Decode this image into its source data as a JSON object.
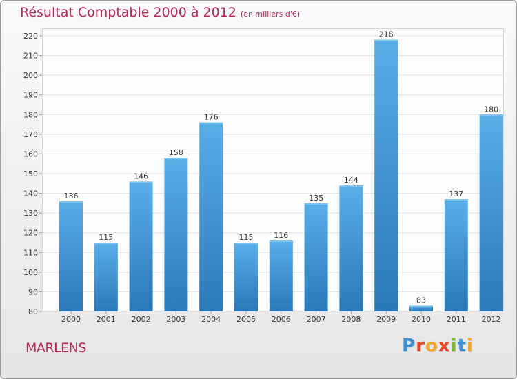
{
  "header": {
    "title": "Résultat Comptable 2000 à 2012",
    "subtitle": "(en milliers d'€)"
  },
  "footer": {
    "place_name": "MARLENS",
    "logo_text": "Proxiti",
    "logo_colors": [
      "#3a8fd9",
      "#e8442a",
      "#f5a623",
      "#e8442a",
      "#7ab929",
      "#3a8fd9",
      "#f5a623"
    ]
  },
  "colors": {
    "bar_top": "#5aaee8",
    "bar_bottom": "#2a78b8",
    "title": "#b3295a"
  },
  "chart_data": {
    "type": "bar",
    "title": "Résultat Comptable 2000 à 2012",
    "subtitle": "(en milliers d'€)",
    "xlabel": "",
    "ylabel": "",
    "categories": [
      "2000",
      "2001",
      "2002",
      "2003",
      "2004",
      "2005",
      "2006",
      "2007",
      "2008",
      "2009",
      "2010",
      "2011",
      "2012"
    ],
    "values": [
      136,
      115,
      146,
      158,
      176,
      115,
      116,
      135,
      144,
      218,
      83,
      137,
      180
    ],
    "ylim": [
      80,
      220
    ],
    "yticks": [
      80,
      90,
      100,
      110,
      120,
      130,
      140,
      150,
      160,
      170,
      180,
      190,
      200,
      210,
      220
    ],
    "grid": true,
    "legend": "none"
  }
}
